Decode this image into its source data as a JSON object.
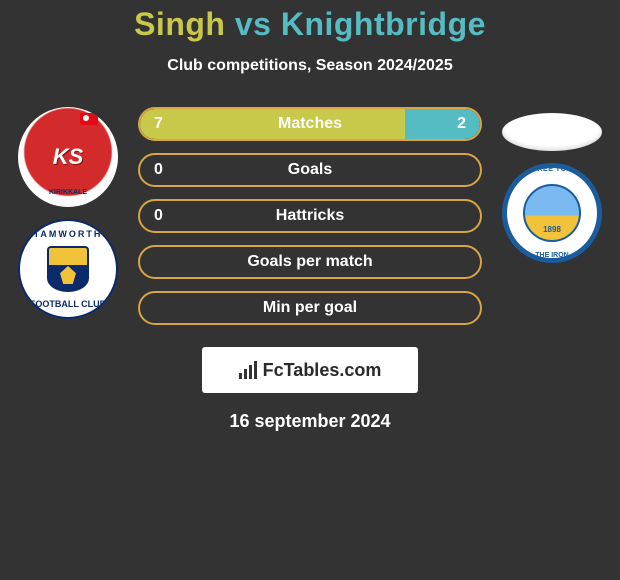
{
  "title": {
    "player1": "Singh",
    "vs": "vs",
    "player2": "Knightbridge"
  },
  "subtitle": "Club competitions, Season 2024/2025",
  "colors": {
    "player1": "#c8c84a",
    "player2": "#55bcc4",
    "bar_border": "#d7a544",
    "background": "#333333"
  },
  "stats": [
    {
      "label": "Matches",
      "left_value": "7",
      "right_value": "2",
      "left_pct": 78,
      "right_pct": 22
    },
    {
      "label": "Goals",
      "left_value": "0",
      "right_value": "",
      "left_pct": 0,
      "right_pct": 0
    },
    {
      "label": "Hattricks",
      "left_value": "0",
      "right_value": "",
      "left_pct": 0,
      "right_pct": 0
    },
    {
      "label": "Goals per match",
      "left_value": "",
      "right_value": "",
      "left_pct": 0,
      "right_pct": 0
    },
    {
      "label": "Min per goal",
      "left_value": "",
      "right_value": "",
      "left_pct": 0,
      "right_pct": 0
    }
  ],
  "badges": {
    "left1": {
      "name": "kirikkale",
      "text_main": "KS",
      "text_sub": "KIRIKKALE"
    },
    "left2": {
      "name": "tamworth",
      "top": "TAMWORTH",
      "bottom": "FOOTBALL CLUB"
    },
    "right1": {
      "name": "ellipse"
    },
    "right2": {
      "name": "braintree",
      "top": "BRAINTREE TOWN F.C.",
      "bottom": "THE IRON",
      "year": "1898"
    }
  },
  "brand": "FcTables.com",
  "date": "16 september 2024"
}
